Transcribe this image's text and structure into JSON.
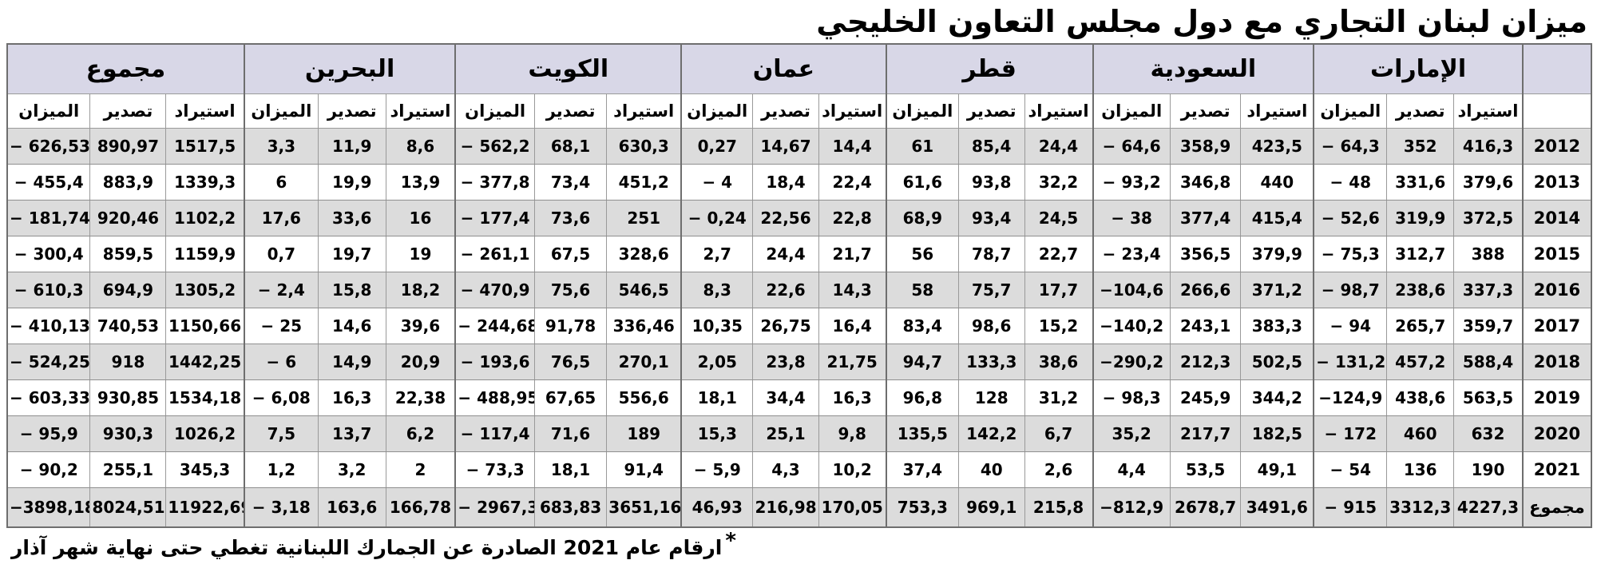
{
  "title": "ميزان لبنان التجاري مع دول مجلس التعاون الخليجي",
  "footnote": {
    "marker": "*",
    "text": "ارقام عام 2021 الصادرة عن الجمارك اللبنانية تغطي حتى نهاية شهر آذار"
  },
  "colors": {
    "header_bg": "#d8d7e7",
    "row_shade": "#dcdcdc",
    "grid_line": "#9a9a9a",
    "group_line": "#6e6e6e",
    "text": "#000000"
  },
  "table": {
    "sub_headers": [
      "استيراد",
      "تصدير",
      "الميزان"
    ],
    "groups": [
      {
        "key": "uae",
        "label": "الإمارات"
      },
      {
        "key": "saudi",
        "label": "السعودية"
      },
      {
        "key": "qatar",
        "label": "قطر"
      },
      {
        "key": "oman",
        "label": "عمان"
      },
      {
        "key": "kuwait",
        "label": "الكويت"
      },
      {
        "key": "bahrain",
        "label": "البحرين"
      },
      {
        "key": "total",
        "label": "مجموع"
      }
    ],
    "rows": [
      {
        "year": "2012",
        "cells": {
          "uae": [
            "416,3",
            "352",
            "− 64,3"
          ],
          "saudi": [
            "423,5",
            "358,9",
            "− 64,6"
          ],
          "qatar": [
            "24,4",
            "85,4",
            "61"
          ],
          "oman": [
            "14,4",
            "14,67",
            "0,27"
          ],
          "kuwait": [
            "630,3",
            "68,1",
            "− 562,2"
          ],
          "bahrain": [
            "8,6",
            "11,9",
            "3,3"
          ],
          "total": [
            "1517,5",
            "890,97",
            "− 626,53"
          ]
        }
      },
      {
        "year": "2013",
        "cells": {
          "uae": [
            "379,6",
            "331,6",
            "− 48"
          ],
          "saudi": [
            "440",
            "346,8",
            "− 93,2"
          ],
          "qatar": [
            "32,2",
            "93,8",
            "61,6"
          ],
          "oman": [
            "22,4",
            "18,4",
            "− 4"
          ],
          "kuwait": [
            "451,2",
            "73,4",
            "− 377,8"
          ],
          "bahrain": [
            "13,9",
            "19,9",
            "6"
          ],
          "total": [
            "1339,3",
            "883,9",
            "− 455,4"
          ]
        }
      },
      {
        "year": "2014",
        "cells": {
          "uae": [
            "372,5",
            "319,9",
            "− 52,6"
          ],
          "saudi": [
            "415,4",
            "377,4",
            "− 38"
          ],
          "qatar": [
            "24,5",
            "93,4",
            "68,9"
          ],
          "oman": [
            "22,8",
            "22,56",
            "− 0,24"
          ],
          "kuwait": [
            "251",
            "73,6",
            "− 177,4"
          ],
          "bahrain": [
            "16",
            "33,6",
            "17,6"
          ],
          "total": [
            "1102,2",
            "920,46",
            "− 181,74"
          ]
        }
      },
      {
        "year": "2015",
        "cells": {
          "uae": [
            "388",
            "312,7",
            "− 75,3"
          ],
          "saudi": [
            "379,9",
            "356,5",
            "− 23,4"
          ],
          "qatar": [
            "22,7",
            "78,7",
            "56"
          ],
          "oman": [
            "21,7",
            "24,4",
            "2,7"
          ],
          "kuwait": [
            "328,6",
            "67,5",
            "− 261,1"
          ],
          "bahrain": [
            "19",
            "19,7",
            "0,7"
          ],
          "total": [
            "1159,9",
            "859,5",
            "− 300,4"
          ]
        }
      },
      {
        "year": "2016",
        "cells": {
          "uae": [
            "337,3",
            "238,6",
            "− 98,7"
          ],
          "saudi": [
            "371,2",
            "266,6",
            "−104,6"
          ],
          "qatar": [
            "17,7",
            "75,7",
            "58"
          ],
          "oman": [
            "14,3",
            "22,6",
            "8,3"
          ],
          "kuwait": [
            "546,5",
            "75,6",
            "− 470,9"
          ],
          "bahrain": [
            "18,2",
            "15,8",
            "− 2,4"
          ],
          "total": [
            "1305,2",
            "694,9",
            "− 610,3"
          ]
        }
      },
      {
        "year": "2017",
        "cells": {
          "uae": [
            "359,7",
            "265,7",
            "− 94"
          ],
          "saudi": [
            "383,3",
            "243,1",
            "−140,2"
          ],
          "qatar": [
            "15,2",
            "98,6",
            "83,4"
          ],
          "oman": [
            "16,4",
            "26,75",
            "10,35"
          ],
          "kuwait": [
            "336,46",
            "91,78",
            "− 244,68"
          ],
          "bahrain": [
            "39,6",
            "14,6",
            "− 25"
          ],
          "total": [
            "1150,66",
            "740,53",
            "− 410,13"
          ]
        }
      },
      {
        "year": "2018",
        "cells": {
          "uae": [
            "588,4",
            "457,2",
            "− 131,2"
          ],
          "saudi": [
            "502,5",
            "212,3",
            "−290,2"
          ],
          "qatar": [
            "38,6",
            "133,3",
            "94,7"
          ],
          "oman": [
            "21,75",
            "23,8",
            "2,05"
          ],
          "kuwait": [
            "270,1",
            "76,5",
            "− 193,6"
          ],
          "bahrain": [
            "20,9",
            "14,9",
            "− 6"
          ],
          "total": [
            "1442,25",
            "918",
            "− 524,25"
          ]
        }
      },
      {
        "year": "2019",
        "cells": {
          "uae": [
            "563,5",
            "438,6",
            "−124,9"
          ],
          "saudi": [
            "344,2",
            "245,9",
            "− 98,3"
          ],
          "qatar": [
            "31,2",
            "128",
            "96,8"
          ],
          "oman": [
            "16,3",
            "34,4",
            "18,1"
          ],
          "kuwait": [
            "556,6",
            "67,65",
            "− 488,95"
          ],
          "bahrain": [
            "22,38",
            "16,3",
            "− 6,08"
          ],
          "total": [
            "1534,18",
            "930,85",
            "− 603,33"
          ]
        }
      },
      {
        "year": "2020",
        "cells": {
          "uae": [
            "632",
            "460",
            "− 172"
          ],
          "saudi": [
            "182,5",
            "217,7",
            "35,2"
          ],
          "qatar": [
            "6,7",
            "142,2",
            "135,5"
          ],
          "oman": [
            "9,8",
            "25,1",
            "15,3"
          ],
          "kuwait": [
            "189",
            "71,6",
            "− 117,4"
          ],
          "bahrain": [
            "6,2",
            "13,7",
            "7,5"
          ],
          "total": [
            "1026,2",
            "930,3",
            "− 95,9"
          ]
        }
      },
      {
        "year": "2021",
        "cells": {
          "uae": [
            "190",
            "136",
            "− 54"
          ],
          "saudi": [
            "49,1",
            "53,5",
            "4,4"
          ],
          "qatar": [
            "2,6",
            "40",
            "37,4"
          ],
          "oman": [
            "10,2",
            "4,3",
            "− 5,9"
          ],
          "kuwait": [
            "91,4",
            "18,1",
            "− 73,3"
          ],
          "bahrain": [
            "2",
            "3,2",
            "1,2"
          ],
          "total": [
            "345,3",
            "255,1",
            "− 90,2"
          ]
        }
      },
      {
        "year": "مجموع",
        "cells": {
          "uae": [
            "4227,3",
            "3312,3",
            "− 915"
          ],
          "saudi": [
            "3491,6",
            "2678,7",
            "−812,9"
          ],
          "qatar": [
            "215,8",
            "969,1",
            "753,3"
          ],
          "oman": [
            "170,05",
            "216,98",
            "46,93"
          ],
          "kuwait": [
            "3651,16",
            "683,83",
            "− 2967,33"
          ],
          "bahrain": [
            "166,78",
            "163,6",
            "− 3,18"
          ],
          "total": [
            "11922,69",
            "8024,51",
            "−3898,18"
          ]
        }
      }
    ]
  },
  "chart_data": {
    "type": "table",
    "title": "ميزان لبنان التجاري مع دول مجلس التعاون الخليجي",
    "footnote": "ارقام عام 2021 الصادرة عن الجمارك اللبنانية تغطي حتى نهاية شهر آذار",
    "years": [
      "2012",
      "2013",
      "2014",
      "2015",
      "2016",
      "2017",
      "2018",
      "2019",
      "2020",
      "2021",
      "مجموع"
    ],
    "measures": [
      "استيراد",
      "تصدير",
      "الميزان"
    ],
    "countries": [
      {
        "name": "الإمارات",
        "import": [
          416.3,
          379.6,
          372.5,
          388,
          337.3,
          359.7,
          588.4,
          563.5,
          632,
          190,
          4227.3
        ],
        "export": [
          352,
          331.6,
          319.9,
          312.7,
          238.6,
          265.7,
          457.2,
          438.6,
          460,
          136,
          3312.3
        ],
        "balance": [
          -64.3,
          -48,
          -52.6,
          -75.3,
          -98.7,
          -94,
          -131.2,
          -124.9,
          -172,
          -54,
          -915
        ]
      },
      {
        "name": "السعودية",
        "import": [
          423.5,
          440,
          415.4,
          379.9,
          371.2,
          383.3,
          502.5,
          344.2,
          182.5,
          49.1,
          3491.6
        ],
        "export": [
          358.9,
          346.8,
          377.4,
          356.5,
          266.6,
          243.1,
          212.3,
          245.9,
          217.7,
          53.5,
          2678.7
        ],
        "balance": [
          -64.6,
          -93.2,
          -38,
          -23.4,
          -104.6,
          -140.2,
          -290.2,
          -98.3,
          35.2,
          4.4,
          -812.9
        ]
      },
      {
        "name": "قطر",
        "import": [
          24.4,
          32.2,
          24.5,
          22.7,
          17.7,
          15.2,
          38.6,
          31.2,
          6.7,
          2.6,
          215.8
        ],
        "export": [
          85.4,
          93.8,
          93.4,
          78.7,
          75.7,
          98.6,
          133.3,
          128,
          142.2,
          40,
          969.1
        ],
        "balance": [
          61,
          61.6,
          68.9,
          56,
          58,
          83.4,
          94.7,
          96.8,
          135.5,
          37.4,
          753.3
        ]
      },
      {
        "name": "عمان",
        "import": [
          14.4,
          22.4,
          22.8,
          21.7,
          14.3,
          16.4,
          21.75,
          16.3,
          9.8,
          10.2,
          170.05
        ],
        "export": [
          14.67,
          18.4,
          22.56,
          24.4,
          22.6,
          26.75,
          23.8,
          34.4,
          25.1,
          4.3,
          216.98
        ],
        "balance": [
          0.27,
          -4,
          -0.24,
          2.7,
          8.3,
          10.35,
          2.05,
          18.1,
          15.3,
          -5.9,
          46.93
        ]
      },
      {
        "name": "الكويت",
        "import": [
          630.3,
          451.2,
          251,
          328.6,
          546.5,
          336.46,
          270.1,
          556.6,
          189,
          91.4,
          3651.16
        ],
        "export": [
          68.1,
          73.4,
          73.6,
          67.5,
          75.6,
          91.78,
          76.5,
          67.65,
          71.6,
          18.1,
          683.83
        ],
        "balance": [
          -562.2,
          -377.8,
          -177.4,
          -261.1,
          -470.9,
          -244.68,
          -193.6,
          -488.95,
          -117.4,
          -73.3,
          -2967.33
        ]
      },
      {
        "name": "البحرين",
        "import": [
          8.6,
          13.9,
          16,
          19,
          18.2,
          39.6,
          20.9,
          22.38,
          6.2,
          2,
          166.78
        ],
        "export": [
          11.9,
          19.9,
          33.6,
          19.7,
          15.8,
          14.6,
          14.9,
          16.3,
          13.7,
          3.2,
          163.6
        ],
        "balance": [
          3.3,
          6,
          17.6,
          0.7,
          -2.4,
          -25,
          -6,
          -6.08,
          7.5,
          1.2,
          -3.18
        ]
      },
      {
        "name": "مجموع",
        "import": [
          1517.5,
          1339.3,
          1102.2,
          1159.9,
          1305.2,
          1150.66,
          1442.25,
          1534.18,
          1026.2,
          345.3,
          11922.69
        ],
        "export": [
          890.97,
          883.9,
          920.46,
          859.5,
          694.9,
          740.53,
          918,
          930.85,
          930.3,
          255.1,
          8024.51
        ],
        "balance": [
          -626.53,
          -455.4,
          -181.74,
          -300.4,
          -610.3,
          -410.13,
          -524.25,
          -603.33,
          -95.9,
          -90.2,
          -3898.18
        ]
      }
    ]
  }
}
